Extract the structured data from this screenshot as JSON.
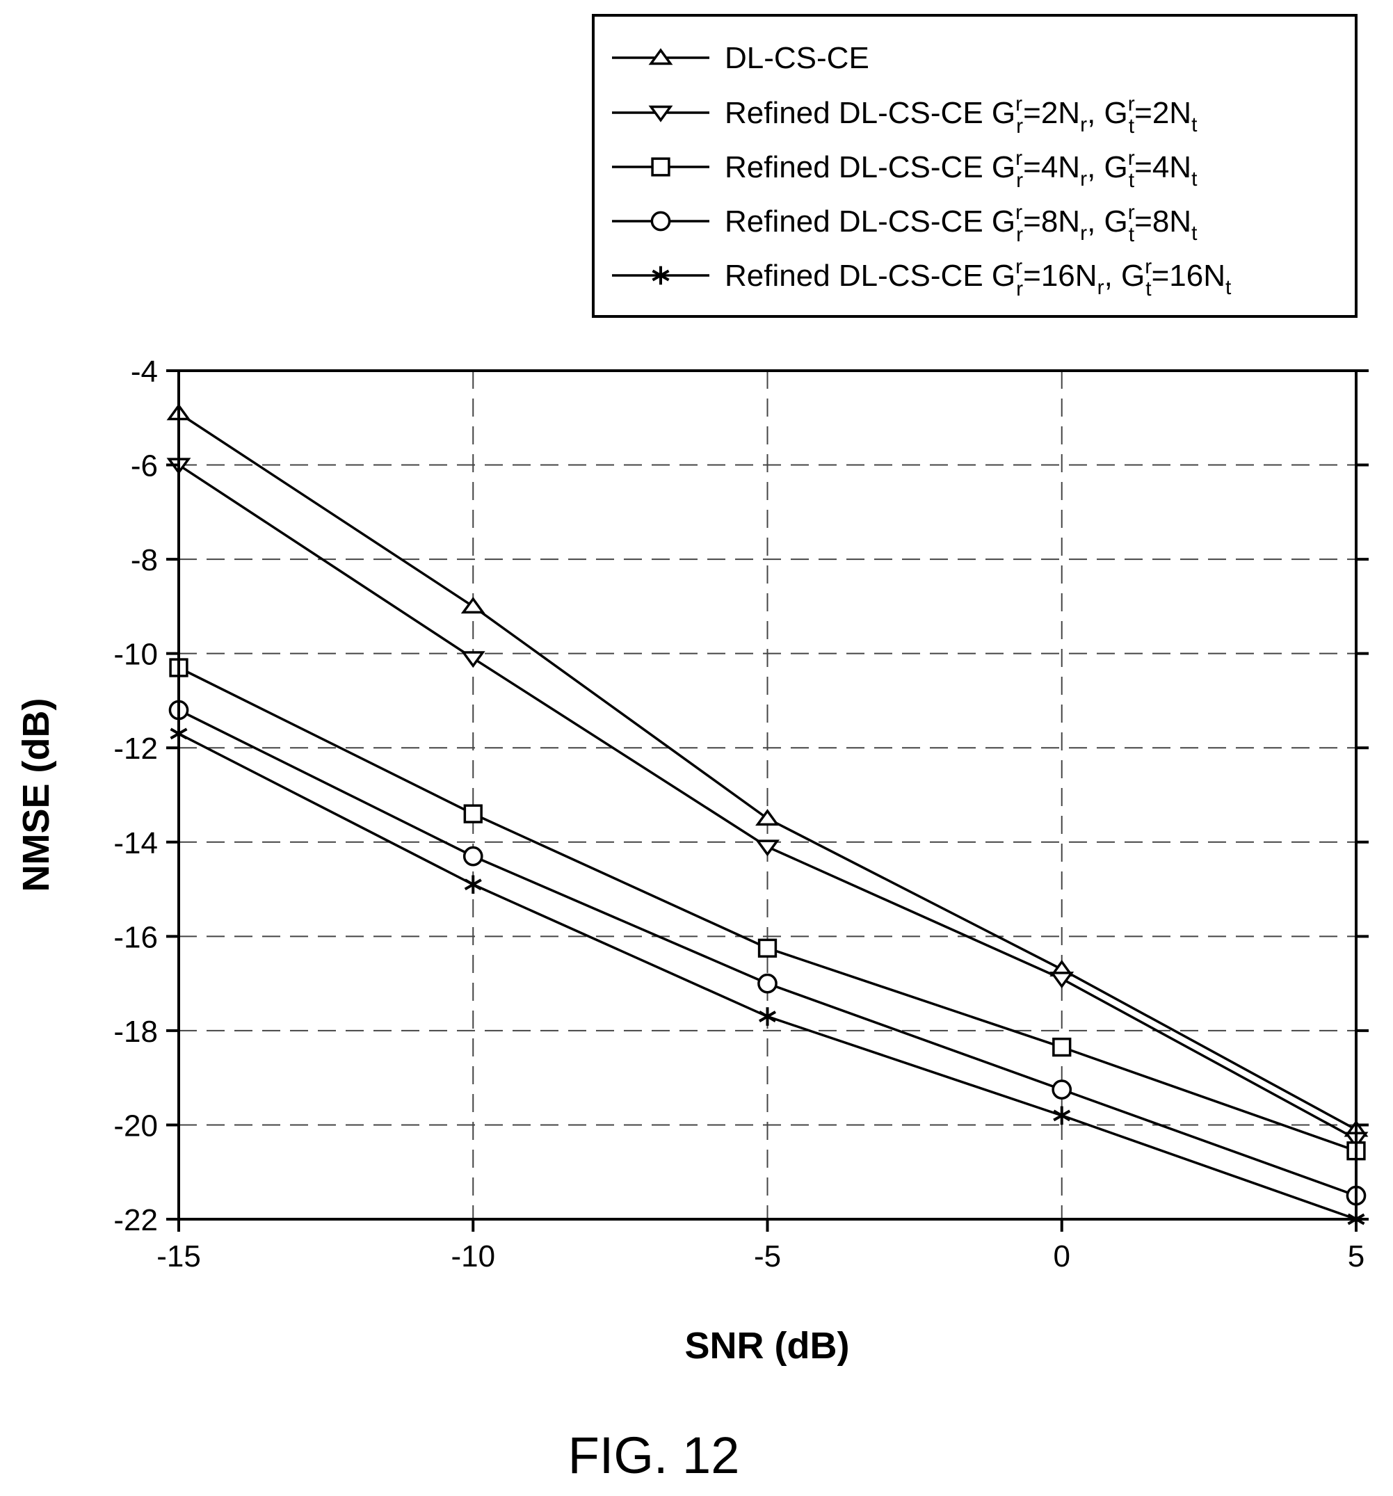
{
  "figure_label": "FIG. 12",
  "chart_data": {
    "type": "line",
    "xlabel": "SNR (dB)",
    "ylabel": "NMSE (dB)",
    "xlim": [
      -15,
      5
    ],
    "ylim": [
      -22,
      -4
    ],
    "xticks": [
      -15,
      -10,
      -5,
      0,
      5
    ],
    "yticks": [
      -4,
      -6,
      -8,
      -10,
      -12,
      -14,
      -16,
      -18,
      -20,
      -22
    ],
    "grid": true,
    "legend_position": "top-right, above plot",
    "x": [
      -15,
      -10,
      -5,
      0,
      5
    ],
    "series": [
      {
        "name": "DL-CS-CE",
        "marker": "triangle-up",
        "values": [
          -4.9,
          -9.0,
          -13.5,
          -16.7,
          -20.1
        ]
      },
      {
        "name": "Refined DL-CS-CE Grr=2Nr, Gtr=2Nt",
        "label_parts": {
          "prefix": "Refined DL-CS-CE G",
          "a_sup": "r",
          "a_sub": "r",
          "a_val": "=2N",
          "a_n_sub": "r",
          "sep": ", G",
          "b_sup": "r",
          "b_sub": "t",
          "b_val": "=2N",
          "b_n_sub": "t"
        },
        "marker": "triangle-down",
        "values": [
          -6.0,
          -10.1,
          -14.1,
          -16.9,
          -20.3
        ]
      },
      {
        "name": "Refined DL-CS-CE Grr=4Nr, Gtr=4Nt",
        "label_parts": {
          "prefix": "Refined DL-CS-CE G",
          "a_sup": "r",
          "a_sub": "r",
          "a_val": "=4N",
          "a_n_sub": "r",
          "sep": ", G",
          "b_sup": "r",
          "b_sub": "t",
          "b_val": "=4N",
          "b_n_sub": "t"
        },
        "marker": "square",
        "values": [
          -10.3,
          -13.4,
          -16.25,
          -18.35,
          -20.55
        ]
      },
      {
        "name": "Refined DL-CS-CE Grr=8Nr, Gtr=8Nt",
        "label_parts": {
          "prefix": "Refined DL-CS-CE G",
          "a_sup": "r",
          "a_sub": "r",
          "a_val": "=8N",
          "a_n_sub": "r",
          "sep": ", G",
          "b_sup": "r",
          "b_sub": "t",
          "b_val": "=8N",
          "b_n_sub": "t"
        },
        "marker": "circle",
        "values": [
          -11.2,
          -14.3,
          -17.0,
          -19.25,
          -21.5
        ]
      },
      {
        "name": "Refined DL-CS-CE Grr=16Nr, Gtr=16Nt",
        "label_parts": {
          "prefix": "Refined DL-CS-CE G",
          "a_sup": "r",
          "a_sub": "r",
          "a_val": "=16N",
          "a_n_sub": "r",
          "sep": ", G",
          "b_sup": "r",
          "b_sub": "t",
          "b_val": "=16N",
          "b_n_sub": "t"
        },
        "marker": "asterisk",
        "values": [
          -11.7,
          -14.9,
          -17.7,
          -19.8,
          -22.0
        ]
      }
    ]
  }
}
